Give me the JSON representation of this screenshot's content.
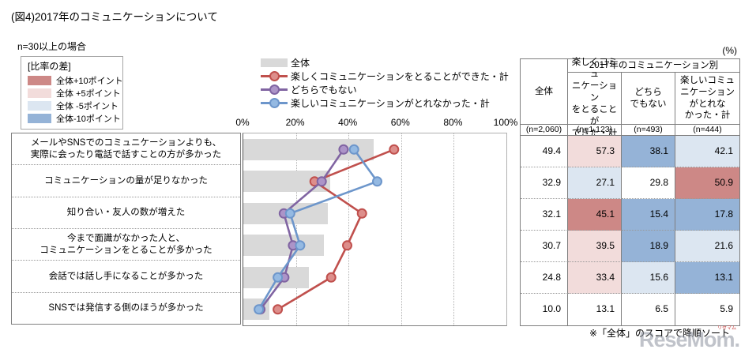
{
  "page": {
    "title": "(図4)2017年のコミュニケーションについて",
    "subtitle": "n=30以上の場合",
    "percent_label": "(%)",
    "note": "※「全体」のスコアで降順ソート",
    "watermark": {
      "text": "ReseMom.",
      "mini": "リセマム"
    }
  },
  "diff_legend": {
    "title": "[比率の差]",
    "items": [
      {
        "label": "全体+10ポイント",
        "color": "#CD8886"
      },
      {
        "label": "全体 +5ポイント",
        "color": "#F2DCDB"
      },
      {
        "label": "全体 -5ポイント",
        "color": "#DCE6F1"
      },
      {
        "label": "全体-10ポイント",
        "color": "#95B3D7"
      }
    ]
  },
  "chart_data": {
    "type": "bar+line",
    "orientation": "horizontal",
    "xlim": [
      0,
      100
    ],
    "x_ticks": [
      "0%",
      "20%",
      "40%",
      "60%",
      "80%",
      "100%"
    ],
    "grid": "vertical-dotted",
    "legend_position": "top",
    "categories": [
      "メールやSNSでのコミュニケーションよりも、\n実際に会ったり電話で話すことの方が多かった",
      "コミュニケーションの量が足りなかった",
      "知り合い・友人の数が増えた",
      "今まで面識がなかった人と、\nコミュニケーションをとることが多かった",
      "会話では話し手になることが多かった",
      "SNSでは発信する側のほうが多かった"
    ],
    "series": [
      {
        "name": "全体",
        "type": "bar",
        "color": "#D9D9D9",
        "values": [
          49.4,
          32.9,
          32.1,
          30.7,
          24.8,
          10.0
        ]
      },
      {
        "name": "楽しくコミュニケーションをとることができた・計",
        "type": "line",
        "color": "#C0504D",
        "marker_fill": "#DD8E8B",
        "values": [
          57.3,
          27.1,
          45.1,
          39.5,
          33.4,
          13.1
        ]
      },
      {
        "name": "どちらでもない",
        "type": "line",
        "color": "#8064A2",
        "marker_fill": "#AC94C8",
        "values": [
          38.1,
          29.8,
          15.4,
          18.9,
          15.6,
          6.5
        ]
      },
      {
        "name": "楽しいコミュニケーションがとれなかった・計",
        "type": "line",
        "color": "#6D96CB",
        "marker_fill": "#94B9E2",
        "values": [
          42.1,
          50.9,
          17.8,
          21.6,
          13.1,
          5.9
        ]
      }
    ]
  },
  "table": {
    "group_header": "2017年のコミュニケーション別",
    "columns": [
      {
        "label": "全体",
        "n": "(n=2,060)"
      },
      {
        "label": "楽しくコミュ\nニケーション\nをとることが\nできた・計",
        "n": "(n=1,123)"
      },
      {
        "label": "どちら\nでもない",
        "n": "(n=493)"
      },
      {
        "label": "楽しいコミュ\nニケーション\nがとれな\nかった・計",
        "n": "(n=444)"
      }
    ],
    "rows": [
      [
        "49.4",
        "57.3",
        "38.1",
        "42.1"
      ],
      [
        "32.9",
        "27.1",
        "29.8",
        "50.9"
      ],
      [
        "32.1",
        "45.1",
        "15.4",
        "17.8"
      ],
      [
        "30.7",
        "39.5",
        "18.9",
        "21.6"
      ],
      [
        "24.8",
        "33.4",
        "15.6",
        "13.1"
      ],
      [
        "10.0",
        "13.1",
        "6.5",
        "5.9"
      ]
    ],
    "highlight_colors": {
      "p10": "#CD8886",
      "p5": "#F2DCDB",
      "m5": "#DCE6F1",
      "m10": "#95B3D7"
    },
    "highlight_thresholds": {
      "p10": 10,
      "p5": 5,
      "m5": -5,
      "m10": -10
    }
  }
}
